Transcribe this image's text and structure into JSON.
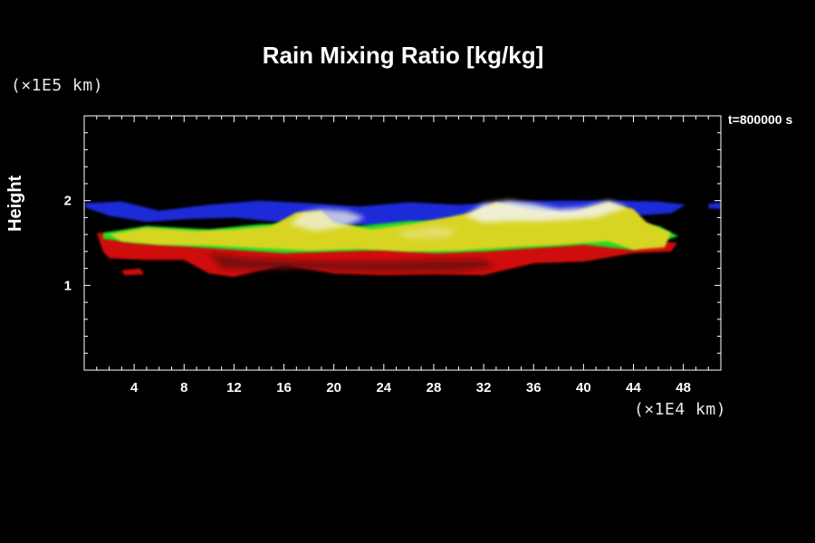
{
  "chart_data": {
    "type": "heatmap",
    "title": "Rain Mixing Ratio [kg/kg]",
    "ylabel": "Height",
    "y_unit": "(×1E5 km)",
    "x_unit": "(×1E4 km)",
    "time_label": "t=800000 s",
    "xlim": [
      0,
      51
    ],
    "ylim": [
      0,
      3
    ],
    "x_ticks": [
      4,
      8,
      12,
      16,
      20,
      24,
      28,
      32,
      36,
      40,
      44,
      48
    ],
    "y_ticks": [
      1,
      2
    ],
    "grid": false,
    "colors": {
      "blue": "#1a2bd8",
      "yellow": "#d8d420",
      "green": "#22dd22",
      "red": "#d00a0a",
      "dark_red": "#6a0a0a",
      "white": "#f2f2e8"
    },
    "layers": [
      {
        "name": "blue",
        "x": [
          0.2,
          51
        ],
        "y": [
          1.7,
          2.0
        ]
      },
      {
        "name": "yellow",
        "x": [
          1,
          47.5
        ],
        "y": [
          1.35,
          2.0
        ]
      },
      {
        "name": "red",
        "x": [
          1,
          47.5
        ],
        "y": [
          1.05,
          1.45
        ]
      }
    ]
  }
}
